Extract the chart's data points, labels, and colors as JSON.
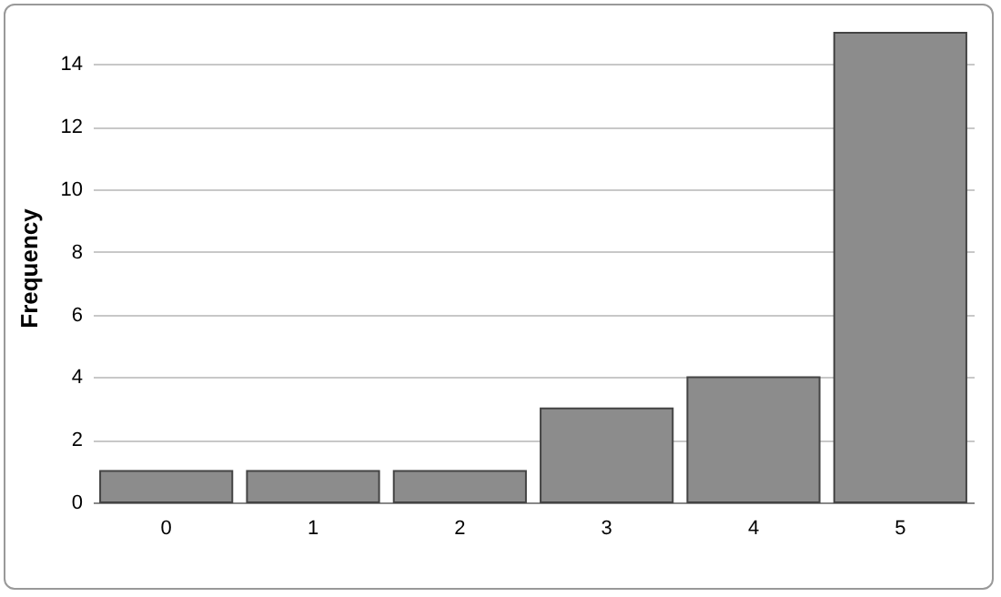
{
  "chart_data": {
    "type": "bar",
    "ylabel": "Frequency",
    "categories": [
      "0",
      "1",
      "2",
      "3",
      "4",
      "5"
    ],
    "values": [
      1,
      1,
      1,
      3,
      4,
      15
    ],
    "color": "#8c8c8c",
    "ylim": [
      0,
      15
    ],
    "yticks": [
      0,
      2,
      4,
      6,
      8,
      10,
      12,
      14
    ],
    "grid": "y"
  }
}
